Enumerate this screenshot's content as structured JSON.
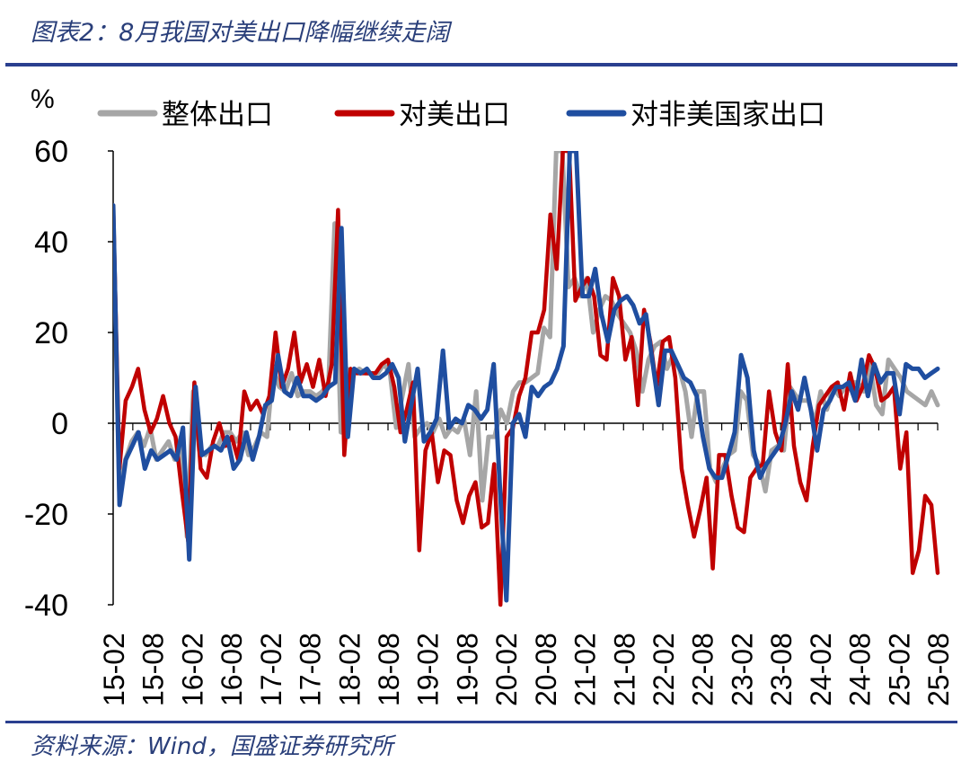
{
  "header": {
    "title": "图表2：8月我国对美出口降幅继续走阔"
  },
  "footer": {
    "source": "资料来源：Wind，国盛证券研究所"
  },
  "chart_data": {
    "type": "line",
    "unit_label": "%",
    "ylim": [
      -40,
      60
    ],
    "yticks": [
      60,
      40,
      20,
      0,
      -20,
      -40
    ],
    "xticks": [
      "15-02",
      "15-08",
      "16-02",
      "16-08",
      "17-02",
      "17-08",
      "18-02",
      "18-08",
      "19-02",
      "19-08",
      "20-02",
      "20-08",
      "21-02",
      "21-08",
      "22-02",
      "22-08",
      "23-02",
      "23-08",
      "24-02",
      "24-08",
      "25-02",
      "25-08"
    ],
    "legend": {
      "position": "top",
      "entries": [
        "整体出口",
        "对美出口",
        "对非美国家出口"
      ]
    },
    "series": [
      {
        "name": "整体出口",
        "color": "#a6a6a6",
        "values": [
          48,
          -15,
          -8,
          -4,
          -2,
          -5,
          -1,
          -8,
          -6,
          -4,
          -8,
          -3,
          -25,
          7,
          -6,
          -7,
          -5,
          -5,
          -2,
          -2,
          -4,
          -2,
          -7,
          -5,
          -2,
          -3,
          12,
          8,
          7,
          11,
          6,
          7,
          7,
          6,
          7,
          9,
          44,
          -2,
          12,
          11,
          12,
          11,
          11,
          11,
          13,
          11,
          -1,
          6,
          13,
          -3,
          -1,
          0,
          -2,
          1,
          -3,
          -1,
          -2,
          1,
          -7,
          7,
          -17,
          -3,
          -3,
          3,
          0,
          7,
          9,
          9,
          10,
          11,
          21,
          19,
          60,
          60,
          30,
          32,
          28,
          32,
          20,
          25,
          28,
          27,
          24,
          22,
          20,
          16,
          7,
          14,
          17,
          18,
          12,
          15,
          12,
          7,
          -3,
          7,
          7,
          -10,
          -13,
          -10,
          -7,
          -6,
          7,
          5,
          -7,
          -9,
          -15,
          -6,
          -5,
          -6,
          8,
          6,
          5,
          5,
          0,
          7,
          3,
          8,
          6,
          8,
          9,
          9,
          7,
          13,
          4,
          2,
          14,
          12,
          10,
          7,
          6,
          5,
          4,
          7,
          4
        ]
      },
      {
        "name": "对美出口",
        "color": "#c00000",
        "values": [
          48,
          -10,
          5,
          8,
          12,
          3,
          -2,
          1,
          6,
          0,
          -3,
          -15,
          -26,
          9,
          -10,
          -12,
          -4,
          0,
          -5,
          -3,
          -8,
          7,
          3,
          5,
          2,
          6,
          20,
          8,
          12,
          20,
          9,
          13,
          8,
          14,
          6,
          13,
          47,
          -7,
          12,
          11,
          11,
          11,
          11,
          13,
          14,
          8,
          -2,
          3,
          9,
          -28,
          -6,
          -2,
          -13,
          -6,
          -7,
          -17,
          -22,
          -16,
          -13,
          -23,
          -22,
          -9,
          -40,
          -3,
          -1,
          6,
          10,
          20,
          20,
          25,
          46,
          34,
          60,
          60,
          27,
          30,
          32,
          28,
          15,
          14,
          32,
          28,
          14,
          19,
          4,
          25,
          18,
          8,
          18,
          19,
          10,
          -10,
          -18,
          -25,
          -19,
          -12,
          -32,
          -7,
          -7,
          -16,
          -23,
          -24,
          -12,
          -10,
          -9,
          7,
          -2,
          -6,
          13,
          -5,
          -13,
          -17,
          -5,
          4,
          6,
          8,
          9,
          3,
          11,
          5,
          8,
          15,
          12,
          5,
          6,
          8,
          -10,
          -2,
          -33,
          -28,
          -16,
          -18,
          -33
        ]
      },
      {
        "name": "对非美国家出口",
        "color": "#1f4ea0",
        "values": [
          48,
          -18,
          -8,
          -5,
          -2,
          -10,
          -6,
          -8,
          -7,
          -6,
          -8,
          -1,
          -30,
          8,
          -7,
          -6,
          -5,
          -6,
          -3,
          -10,
          -8,
          -2,
          -8,
          -3,
          4,
          5,
          15,
          7,
          6,
          10,
          6,
          6,
          5,
          6,
          8,
          9,
          43,
          -3,
          12,
          11,
          12,
          10,
          10,
          11,
          13,
          10,
          -4,
          4,
          12,
          -4,
          -2,
          1,
          16,
          -1,
          1,
          0,
          4,
          3,
          1,
          3,
          13,
          -15,
          -39,
          0,
          2,
          -3,
          8,
          6,
          8,
          9,
          12,
          17,
          60,
          60,
          28,
          28,
          34,
          24,
          18,
          25,
          27,
          28,
          26,
          22,
          24,
          14,
          4,
          16,
          16,
          13,
          10,
          9,
          6,
          -3,
          -10,
          -12,
          -12,
          -7,
          -2,
          15,
          10,
          -6,
          -12,
          -9,
          -7,
          -5,
          0,
          7,
          3,
          10,
          3,
          -6,
          3,
          5,
          8,
          8,
          9,
          5,
          14,
          6,
          13,
          9,
          11,
          11,
          2,
          13,
          12,
          12,
          10,
          11,
          12
        ]
      }
    ]
  }
}
